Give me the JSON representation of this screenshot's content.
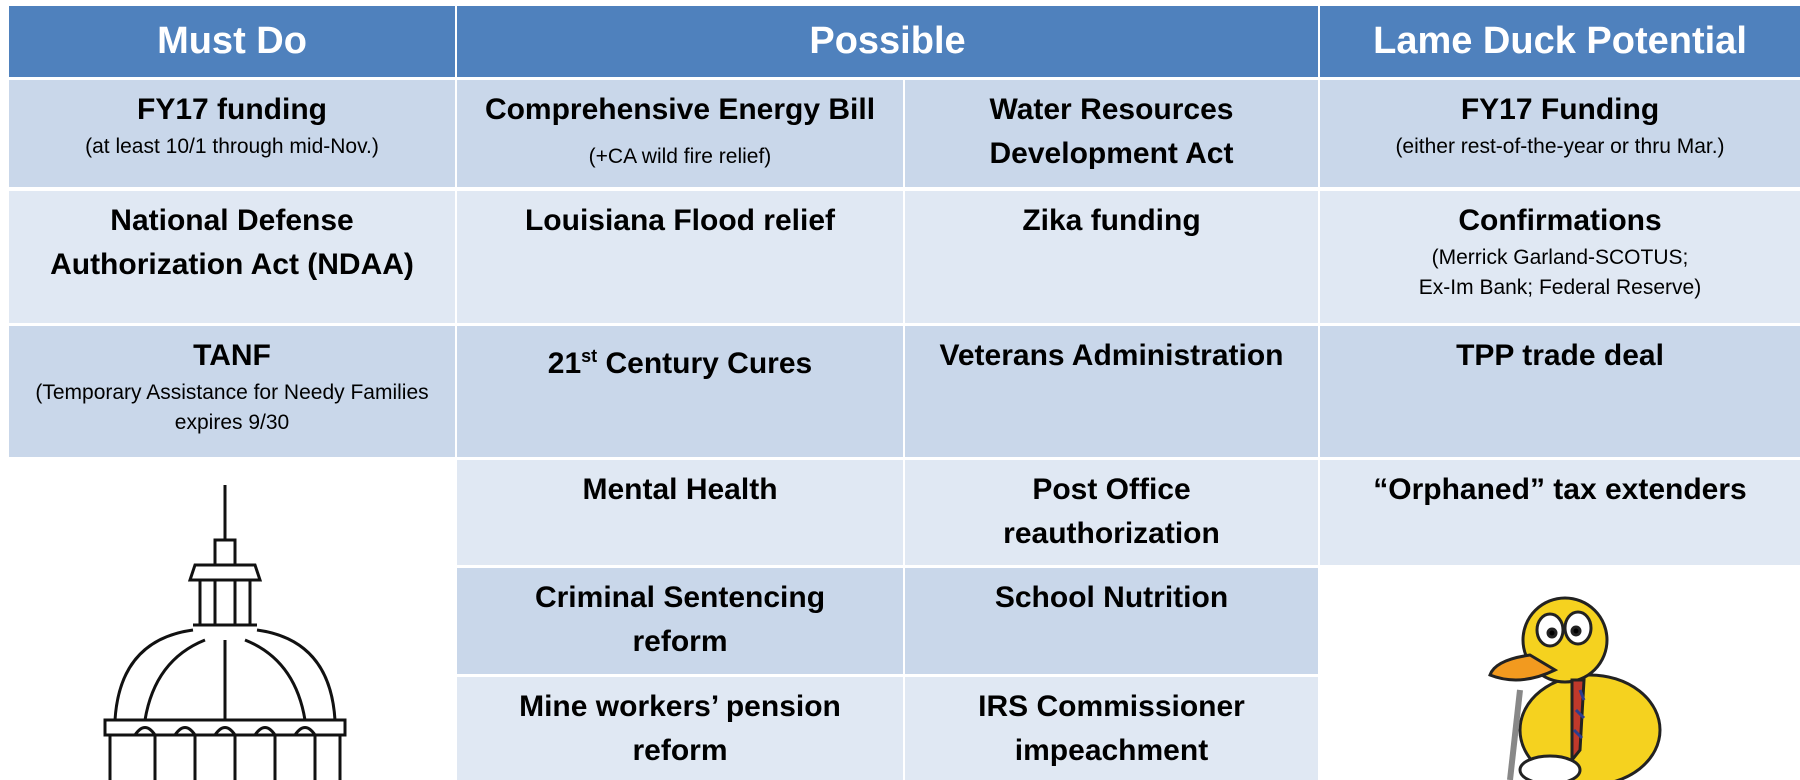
{
  "headers": [
    "Must Do",
    "Possible",
    "Lame Duck Potential"
  ],
  "rows": [
    {
      "cells": [
        {
          "title": "FY17 funding",
          "note": "(at least 10/1 through mid-Nov.)"
        },
        {
          "title": "Comprehensive Energy Bill",
          "note": "(+CA wild fire relief)"
        },
        {
          "title": "Water Resources Development Act"
        },
        {
          "title": "FY17 Funding",
          "note": "(either rest-of-the-year or thru Mar.)"
        }
      ]
    },
    {
      "cells": [
        {
          "title": "National Defense Authorization Act (NDAA)"
        },
        {
          "title": "Louisiana Flood relief"
        },
        {
          "title": "Zika funding"
        },
        {
          "title": "Confirmations",
          "note_lines": [
            "(Merrick Garland-SCOTUS;",
            "Ex-Im Bank; Federal Reserve)"
          ]
        }
      ]
    },
    {
      "cells": [
        {
          "title": "TANF",
          "note": "(Temporary Assistance for Needy Families expires 9/30"
        },
        {
          "title": "21",
          "superscript": "st",
          "title_end": "Century Cures"
        },
        {
          "title": "Veterans Administration"
        },
        {
          "title": "TPP trade deal"
        }
      ]
    },
    {
      "cells": [
        {
          "title": "Mental Health"
        },
        {
          "title": "Post Office reauthorization"
        },
        {
          "title": "“Orphaned” tax extenders"
        }
      ]
    },
    {
      "cells": [
        {
          "title": "Criminal Sentencing reform"
        },
        {
          "title": "School Nutrition"
        }
      ]
    },
    {
      "cells": [
        {
          "title": "Mine workers’ pension reform"
        },
        {
          "title": "IRS Commissioner impeachment"
        }
      ]
    }
  ]
}
